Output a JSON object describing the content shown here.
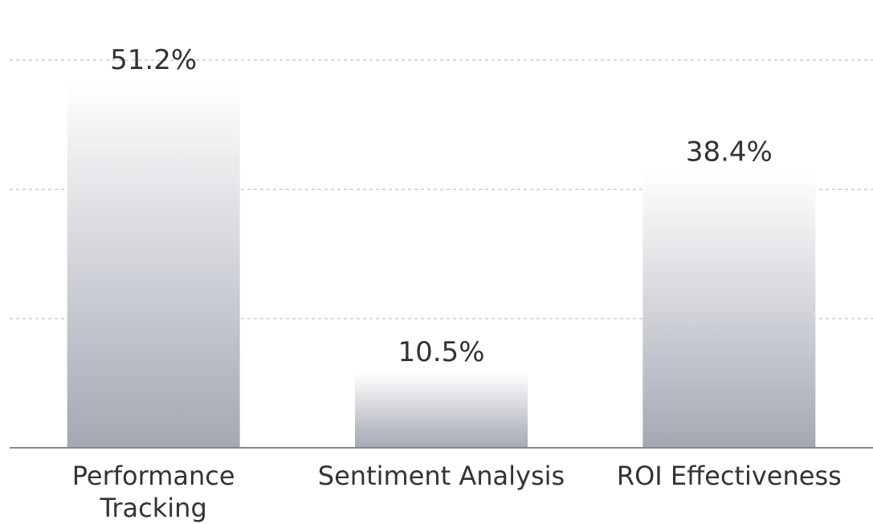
{
  "chart_data": {
    "type": "bar",
    "categories": [
      "Performance Tracking",
      "Sentiment Analysis",
      "ROI Effectiveness"
    ],
    "values": [
      51.2,
      10.5,
      38.4
    ],
    "value_labels": [
      "51.2%",
      "10.5%",
      "38.4%"
    ],
    "color": "#a3a8b3",
    "ylim": [
      0,
      54
    ],
    "yticks": [
      18,
      36,
      54
    ],
    "grid": true
  }
}
